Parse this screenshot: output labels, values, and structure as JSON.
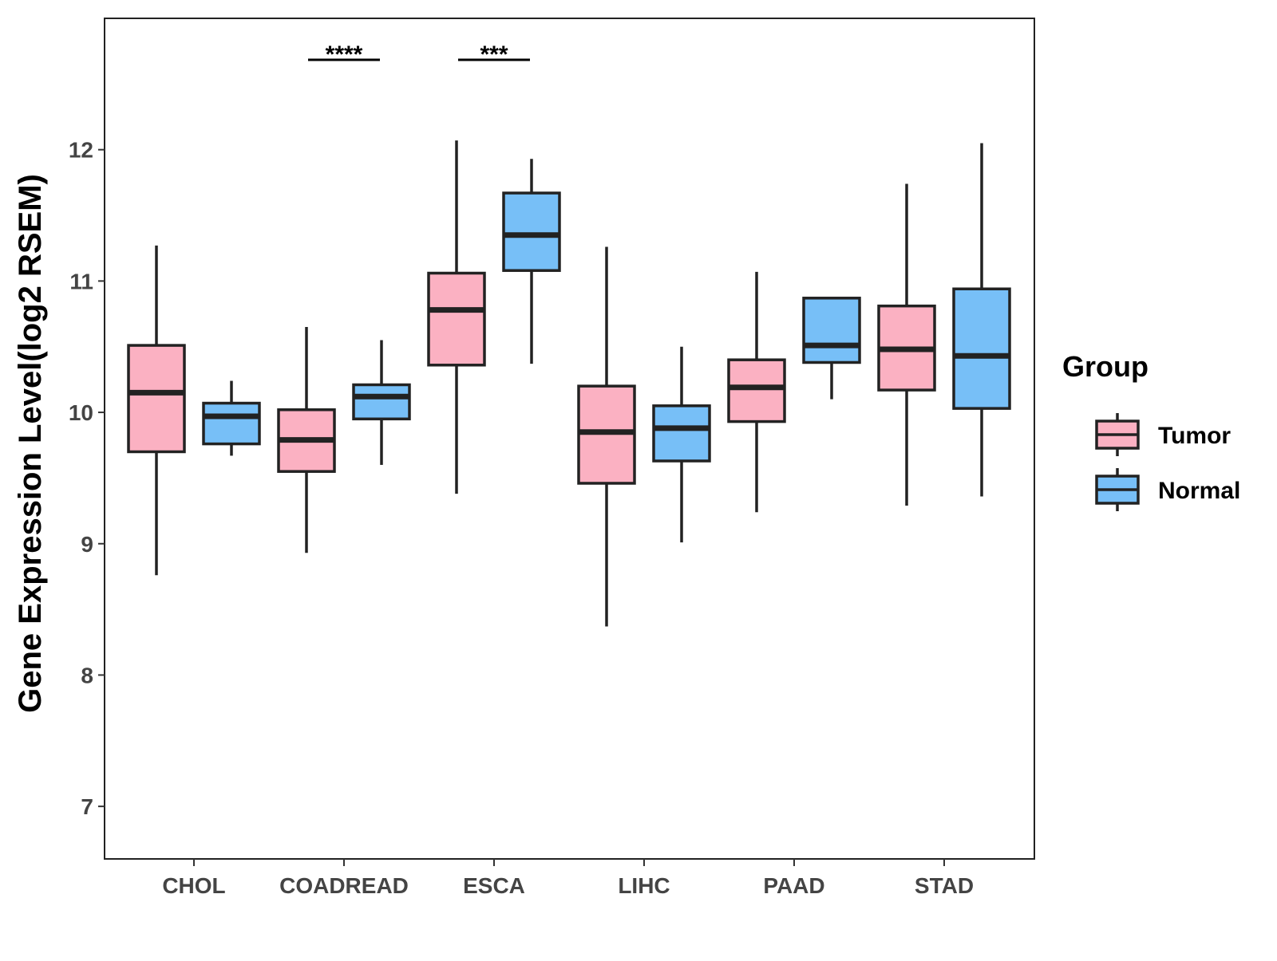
{
  "chart_data": {
    "type": "boxplot",
    "title": "",
    "xlabel": "",
    "ylabel": "Gene Expression Level(log2 RSEM)",
    "ylim": [
      6.6,
      13.0
    ],
    "yticks": [
      7,
      8,
      9,
      10,
      11,
      12
    ],
    "grid": false,
    "legend": {
      "title": "Group",
      "position": "right",
      "entries": [
        "Tumor",
        "Normal"
      ]
    },
    "colors": {
      "Tumor": "#fbb1c2",
      "Normal": "#77bff7",
      "outline": "#222222"
    },
    "categories": [
      "CHOL",
      "COADREAD",
      "ESCA",
      "LIHC",
      "PAAD",
      "STAD"
    ],
    "series": [
      {
        "name": "Tumor",
        "boxes": [
          {
            "min": 8.76,
            "q1": 9.7,
            "median": 10.15,
            "q3": 10.51,
            "max": 11.27
          },
          {
            "min": 8.93,
            "q1": 9.55,
            "median": 9.79,
            "q3": 10.02,
            "max": 10.65
          },
          {
            "min": 9.38,
            "q1": 10.36,
            "median": 10.78,
            "q3": 11.06,
            "max": 12.07
          },
          {
            "min": 8.37,
            "q1": 9.46,
            "median": 9.85,
            "q3": 10.2,
            "max": 11.26
          },
          {
            "min": 9.24,
            "q1": 9.93,
            "median": 10.19,
            "q3": 10.4,
            "max": 11.07
          },
          {
            "min": 9.29,
            "q1": 10.17,
            "median": 10.48,
            "q3": 10.81,
            "max": 11.74
          }
        ]
      },
      {
        "name": "Normal",
        "boxes": [
          {
            "min": 9.67,
            "q1": 9.76,
            "median": 9.97,
            "q3": 10.07,
            "max": 10.24
          },
          {
            "min": 9.6,
            "q1": 9.95,
            "median": 10.12,
            "q3": 10.21,
            "max": 10.55
          },
          {
            "min": 10.37,
            "q1": 11.08,
            "median": 11.35,
            "q3": 11.67,
            "max": 11.93
          },
          {
            "min": 9.01,
            "q1": 9.63,
            "median": 9.88,
            "q3": 10.05,
            "max": 10.5
          },
          {
            "min": 10.1,
            "q1": 10.38,
            "median": 10.51,
            "q3": 10.87,
            "max": 10.87
          },
          {
            "min": 9.36,
            "q1": 10.03,
            "median": 10.43,
            "q3": 10.94,
            "max": 12.05
          }
        ]
      }
    ],
    "significance": [
      {
        "category": "COADREAD",
        "label": "****"
      },
      {
        "category": "ESCA",
        "label": "***"
      }
    ]
  }
}
